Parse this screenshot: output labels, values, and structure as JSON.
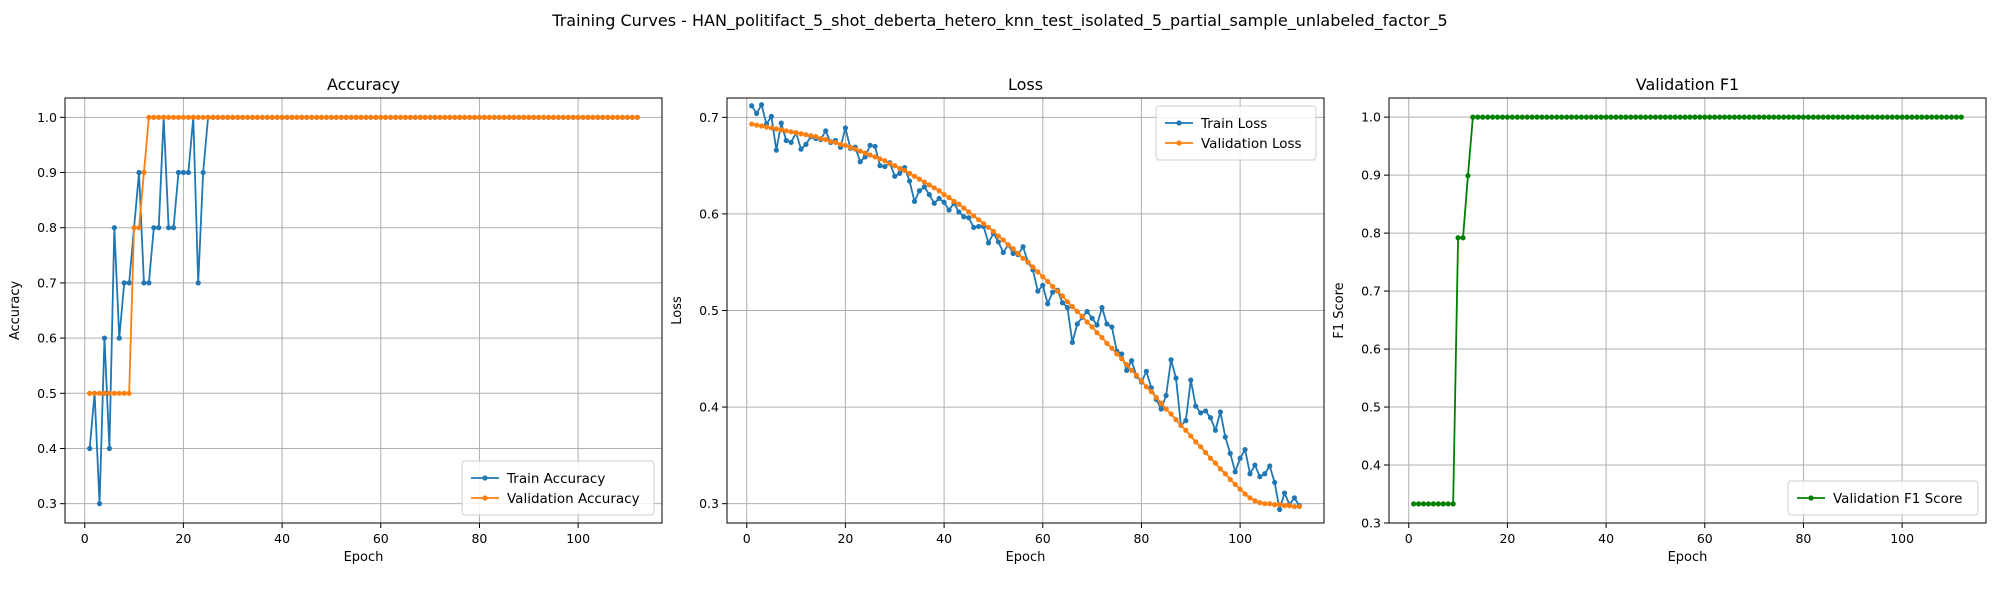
{
  "suptitle": "Training Curves - HAN_politifact_5_shot_deberta_hetero_knn_test_isolated_5_partial_sample_unlabeled_factor_5",
  "chart_data": [
    {
      "type": "line",
      "title": "Accuracy",
      "xlabel": "Epoch",
      "ylabel": "Accuracy",
      "xlim": [
        -4,
        117
      ],
      "ylim": [
        0.265,
        1.035
      ],
      "xticks": [
        0,
        20,
        40,
        60,
        80,
        100
      ],
      "yticks": [
        0.3,
        0.4,
        0.5,
        0.6,
        0.7,
        0.8,
        0.9,
        1.0
      ],
      "ytick_labels": [
        "0.3",
        "0.4",
        "0.5",
        "0.6",
        "0.7",
        "0.8",
        "0.9",
        "1.0"
      ],
      "grid": true,
      "legend_position": "bottom-right",
      "series": [
        {
          "name": "Train Accuracy",
          "color": "#1f77b4",
          "x_start": 1,
          "values": [
            0.4,
            0.5,
            0.3,
            0.6,
            0.4,
            0.8,
            0.6,
            0.7,
            0.7,
            0.8,
            0.9,
            0.7,
            0.7,
            0.8,
            0.8,
            1.0,
            0.8,
            0.8,
            0.9,
            0.9,
            0.9,
            1.0,
            0.7,
            0.9,
            1.0,
            1.0,
            1.0,
            1.0,
            1.0,
            1.0,
            1.0,
            1.0,
            1.0,
            1.0,
            1.0,
            1.0,
            1.0,
            1.0,
            1.0,
            1.0,
            1.0,
            1.0,
            1.0,
            1.0,
            1.0,
            1.0,
            1.0,
            1.0,
            1.0,
            1.0,
            1.0,
            1.0,
            1.0,
            1.0,
            1.0,
            1.0,
            1.0,
            1.0,
            1.0,
            1.0,
            1.0,
            1.0,
            1.0,
            1.0,
            1.0,
            1.0,
            1.0,
            1.0,
            1.0,
            1.0,
            1.0,
            1.0,
            1.0,
            1.0,
            1.0,
            1.0,
            1.0,
            1.0,
            1.0,
            1.0,
            1.0,
            1.0,
            1.0,
            1.0,
            1.0,
            1.0,
            1.0,
            1.0,
            1.0,
            1.0,
            1.0,
            1.0,
            1.0,
            1.0,
            1.0,
            1.0,
            1.0,
            1.0,
            1.0,
            1.0,
            1.0,
            1.0,
            1.0,
            1.0,
            1.0,
            1.0,
            1.0,
            1.0,
            1.0,
            1.0,
            1.0,
            1.0
          ]
        },
        {
          "name": "Validation Accuracy",
          "color": "#ff7f0e",
          "x_start": 1,
          "values": [
            0.5,
            0.5,
            0.5,
            0.5,
            0.5,
            0.5,
            0.5,
            0.5,
            0.5,
            0.8,
            0.8,
            0.9,
            1.0,
            1.0,
            1.0,
            1.0,
            1.0,
            1.0,
            1.0,
            1.0,
            1.0,
            1.0,
            1.0,
            1.0,
            1.0,
            1.0,
            1.0,
            1.0,
            1.0,
            1.0,
            1.0,
            1.0,
            1.0,
            1.0,
            1.0,
            1.0,
            1.0,
            1.0,
            1.0,
            1.0,
            1.0,
            1.0,
            1.0,
            1.0,
            1.0,
            1.0,
            1.0,
            1.0,
            1.0,
            1.0,
            1.0,
            1.0,
            1.0,
            1.0,
            1.0,
            1.0,
            1.0,
            1.0,
            1.0,
            1.0,
            1.0,
            1.0,
            1.0,
            1.0,
            1.0,
            1.0,
            1.0,
            1.0,
            1.0,
            1.0,
            1.0,
            1.0,
            1.0,
            1.0,
            1.0,
            1.0,
            1.0,
            1.0,
            1.0,
            1.0,
            1.0,
            1.0,
            1.0,
            1.0,
            1.0,
            1.0,
            1.0,
            1.0,
            1.0,
            1.0,
            1.0,
            1.0,
            1.0,
            1.0,
            1.0,
            1.0,
            1.0,
            1.0,
            1.0,
            1.0,
            1.0,
            1.0,
            1.0,
            1.0,
            1.0,
            1.0,
            1.0,
            1.0,
            1.0,
            1.0,
            1.0,
            1.0
          ]
        }
      ]
    },
    {
      "type": "line",
      "title": "Loss",
      "xlabel": "Epoch",
      "ylabel": "Loss",
      "xlim": [
        -4,
        117
      ],
      "ylim": [
        0.28,
        0.72
      ],
      "xticks": [
        0,
        20,
        40,
        60,
        80,
        100
      ],
      "yticks": [
        0.3,
        0.4,
        0.5,
        0.6,
        0.7
      ],
      "ytick_labels": [
        "0.3",
        "0.4",
        "0.5",
        "0.6",
        "0.7"
      ],
      "grid": true,
      "legend_position": "top-right",
      "series": [
        {
          "name": "Train Loss",
          "color": "#1f77b4",
          "x_start": 1,
          "values": [
            0.712,
            0.704,
            0.713,
            0.693,
            0.701,
            0.666,
            0.694,
            0.676,
            0.674,
            0.684,
            0.667,
            0.672,
            0.68,
            0.678,
            0.677,
            0.686,
            0.674,
            0.676,
            0.669,
            0.689,
            0.668,
            0.669,
            0.654,
            0.659,
            0.671,
            0.67,
            0.65,
            0.649,
            0.653,
            0.639,
            0.642,
            0.648,
            0.634,
            0.613,
            0.624,
            0.628,
            0.62,
            0.611,
            0.616,
            0.612,
            0.604,
            0.611,
            0.602,
            0.597,
            0.596,
            0.586,
            0.587,
            0.587,
            0.57,
            0.58,
            0.571,
            0.56,
            0.568,
            0.559,
            0.558,
            0.566,
            0.55,
            0.542,
            0.52,
            0.526,
            0.507,
            0.519,
            0.521,
            0.508,
            0.503,
            0.467,
            0.486,
            0.493,
            0.499,
            0.492,
            0.485,
            0.503,
            0.486,
            0.483,
            0.458,
            0.455,
            0.438,
            0.448,
            0.432,
            0.426,
            0.437,
            0.42,
            0.408,
            0.398,
            0.412,
            0.449,
            0.43,
            0.381,
            0.386,
            0.428,
            0.401,
            0.394,
            0.396,
            0.389,
            0.376,
            0.395,
            0.369,
            0.352,
            0.333,
            0.347,
            0.356,
            0.331,
            0.34,
            0.328,
            0.331,
            0.339,
            0.322,
            0.294,
            0.311,
            0.299,
            0.306,
            0.298
          ]
        },
        {
          "name": "Validation Loss",
          "color": "#ff7f0e",
          "x_start": 1,
          "values": [
            0.693,
            0.692,
            0.691,
            0.69,
            0.689,
            0.688,
            0.687,
            0.686,
            0.685,
            0.684,
            0.683,
            0.682,
            0.681,
            0.68,
            0.678,
            0.677,
            0.675,
            0.674,
            0.672,
            0.671,
            0.669,
            0.667,
            0.665,
            0.663,
            0.661,
            0.659,
            0.657,
            0.655,
            0.652,
            0.65,
            0.647,
            0.645,
            0.642,
            0.639,
            0.636,
            0.633,
            0.63,
            0.627,
            0.624,
            0.62,
            0.617,
            0.613,
            0.61,
            0.606,
            0.602,
            0.598,
            0.594,
            0.59,
            0.586,
            0.582,
            0.577,
            0.573,
            0.568,
            0.564,
            0.559,
            0.554,
            0.55,
            0.545,
            0.54,
            0.535,
            0.53,
            0.525,
            0.52,
            0.515,
            0.509,
            0.504,
            0.499,
            0.494,
            0.488,
            0.483,
            0.477,
            0.472,
            0.466,
            0.461,
            0.455,
            0.45,
            0.444,
            0.438,
            0.433,
            0.427,
            0.421,
            0.416,
            0.41,
            0.404,
            0.398,
            0.393,
            0.387,
            0.381,
            0.376,
            0.37,
            0.364,
            0.359,
            0.353,
            0.347,
            0.342,
            0.336,
            0.331,
            0.325,
            0.32,
            0.315,
            0.31,
            0.306,
            0.303,
            0.301,
            0.3,
            0.3,
            0.299,
            0.299,
            0.298,
            0.298,
            0.297,
            0.297
          ]
        }
      ]
    },
    {
      "type": "line",
      "title": "Validation F1",
      "xlabel": "Epoch",
      "ylabel": "F1 Score",
      "xlim": [
        -4,
        117
      ],
      "ylim": [
        0.3,
        1.033
      ],
      "xticks": [
        0,
        20,
        40,
        60,
        80,
        100
      ],
      "yticks": [
        0.3,
        0.4,
        0.5,
        0.6,
        0.7,
        0.8,
        0.9,
        1.0
      ],
      "ytick_labels": [
        "0.3",
        "0.4",
        "0.5",
        "0.6",
        "0.7",
        "0.8",
        "0.9",
        "1.0"
      ],
      "grid": true,
      "legend_position": "bottom-right",
      "series": [
        {
          "name": "Validation F1 Score",
          "color": "#008000",
          "x_start": 1,
          "values": [
            0.333,
            0.333,
            0.333,
            0.333,
            0.333,
            0.333,
            0.333,
            0.333,
            0.333,
            0.792,
            0.792,
            0.899,
            1.0,
            1.0,
            1.0,
            1.0,
            1.0,
            1.0,
            1.0,
            1.0,
            1.0,
            1.0,
            1.0,
            1.0,
            1.0,
            1.0,
            1.0,
            1.0,
            1.0,
            1.0,
            1.0,
            1.0,
            1.0,
            1.0,
            1.0,
            1.0,
            1.0,
            1.0,
            1.0,
            1.0,
            1.0,
            1.0,
            1.0,
            1.0,
            1.0,
            1.0,
            1.0,
            1.0,
            1.0,
            1.0,
            1.0,
            1.0,
            1.0,
            1.0,
            1.0,
            1.0,
            1.0,
            1.0,
            1.0,
            1.0,
            1.0,
            1.0,
            1.0,
            1.0,
            1.0,
            1.0,
            1.0,
            1.0,
            1.0,
            1.0,
            1.0,
            1.0,
            1.0,
            1.0,
            1.0,
            1.0,
            1.0,
            1.0,
            1.0,
            1.0,
            1.0,
            1.0,
            1.0,
            1.0,
            1.0,
            1.0,
            1.0,
            1.0,
            1.0,
            1.0,
            1.0,
            1.0,
            1.0,
            1.0,
            1.0,
            1.0,
            1.0,
            1.0,
            1.0,
            1.0,
            1.0,
            1.0,
            1.0,
            1.0,
            1.0,
            1.0,
            1.0,
            1.0,
            1.0,
            1.0,
            1.0,
            1.0
          ]
        }
      ]
    }
  ]
}
